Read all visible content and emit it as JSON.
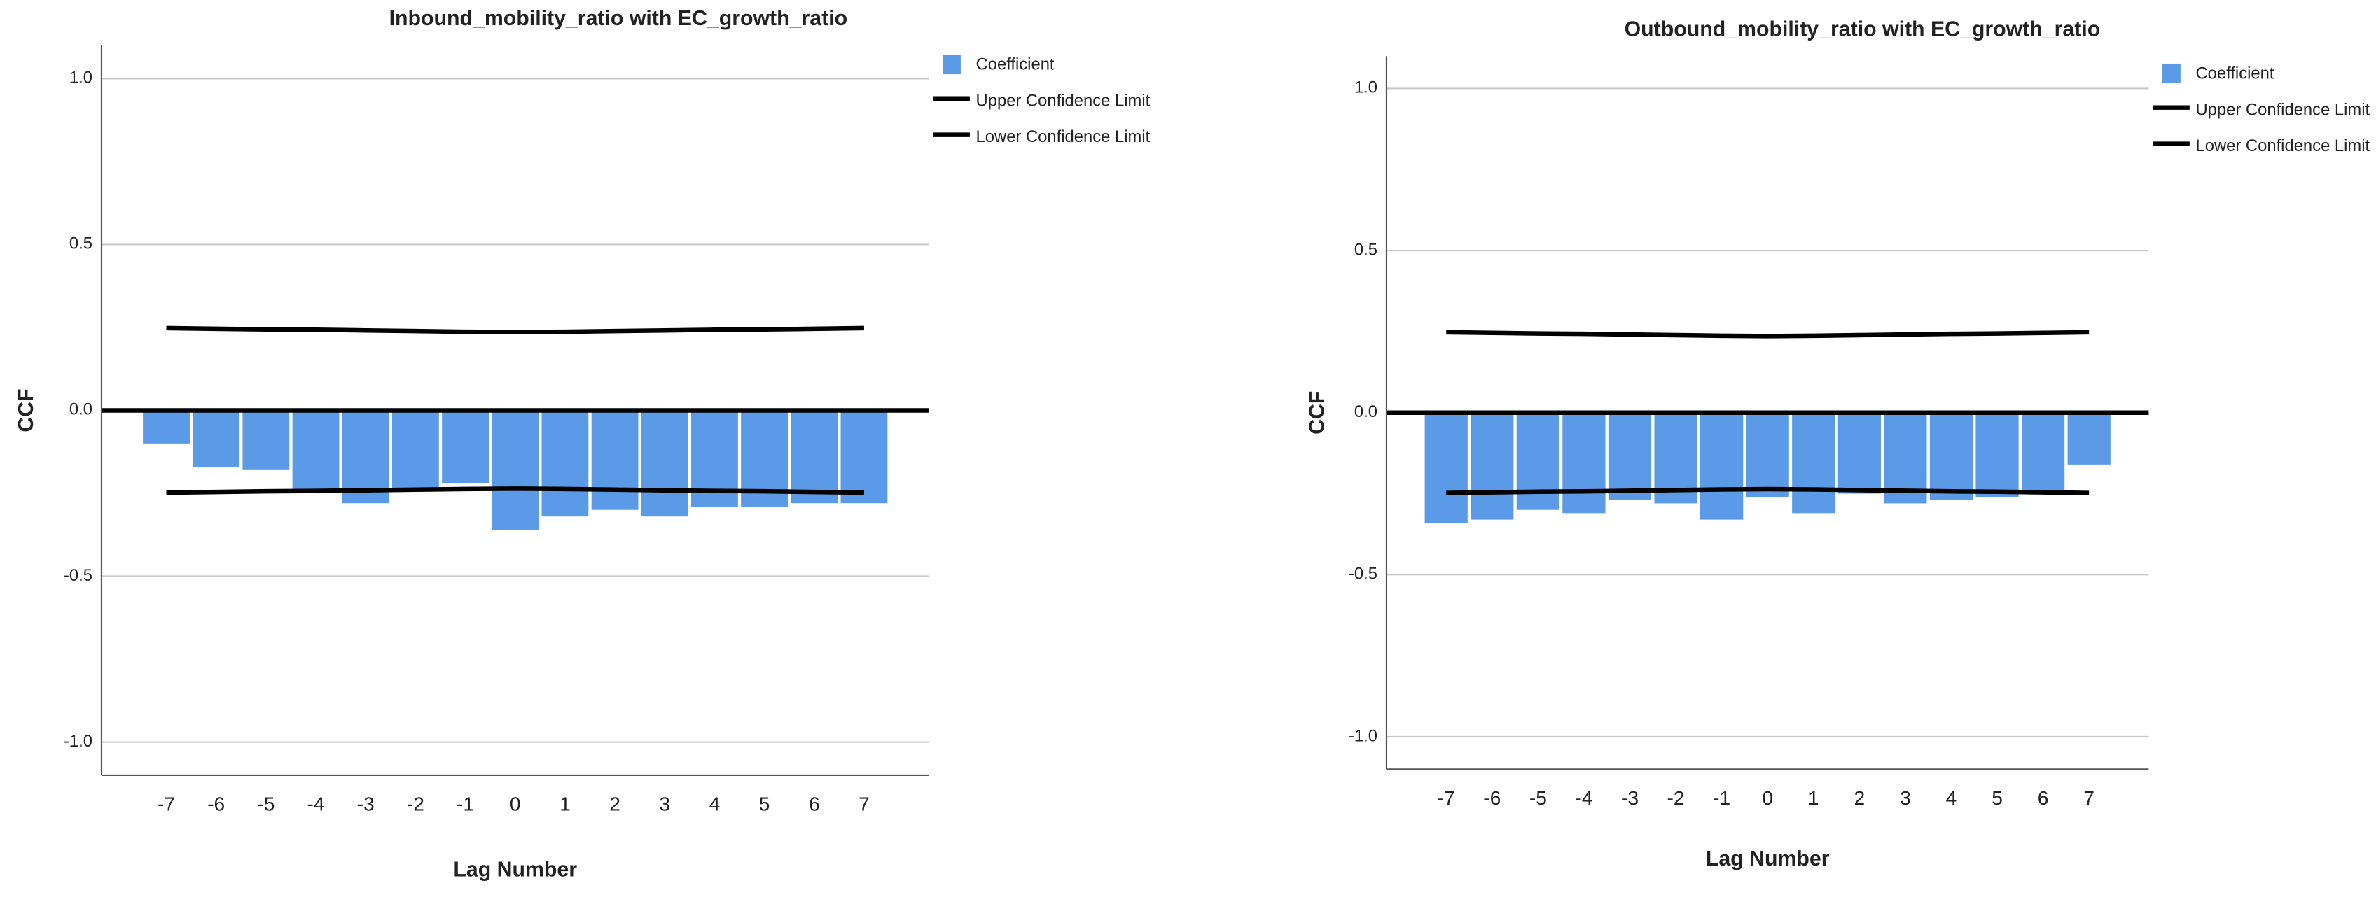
{
  "chart_data": [
    {
      "type": "bar",
      "title": "Inbound_mobility_ratio with EC_growth_ratio",
      "x_label": "Lag Number",
      "y_label": "CCF",
      "categories": [
        "-7",
        "-6",
        "-5",
        "-4",
        "-3",
        "-2",
        "-1",
        "0",
        "1",
        "2",
        "3",
        "4",
        "5",
        "6",
        "7"
      ],
      "series": [
        {
          "name": "Coefficient",
          "color": "#5a9ae6",
          "type": "bar",
          "values": [
            -0.1,
            -0.17,
            -0.18,
            -0.25,
            -0.28,
            -0.24,
            -0.22,
            -0.36,
            -0.32,
            -0.3,
            -0.32,
            -0.29,
            -0.29,
            -0.28,
            -0.28
          ]
        },
        {
          "name": "Upper Confidence Limit",
          "color": "#000000",
          "type": "line",
          "values": [
            0.248,
            0.246,
            0.244,
            0.243,
            0.241,
            0.239,
            0.237,
            0.236,
            0.237,
            0.239,
            0.241,
            0.243,
            0.244,
            0.246,
            0.248
          ]
        },
        {
          "name": "Lower Confidence Limit",
          "color": "#000000",
          "type": "line",
          "values": [
            -0.248,
            -0.246,
            -0.244,
            -0.243,
            -0.241,
            -0.239,
            -0.237,
            -0.236,
            -0.237,
            -0.239,
            -0.241,
            -0.243,
            -0.244,
            -0.246,
            -0.248
          ]
        }
      ],
      "ylim": [
        -1.1,
        1.1
      ],
      "yticks": [
        {
          "value": -1,
          "label": "-1.0"
        },
        {
          "value": -0.5,
          "label": "-0.5"
        },
        {
          "value": 0,
          "label": "0.0"
        },
        {
          "value": 0.5,
          "label": "0.5"
        },
        {
          "value": 1,
          "label": "1.0"
        }
      ],
      "grid": true,
      "legend": "right"
    },
    {
      "type": "bar",
      "title": "Outbound_mobility_ratio with EC_growth_ratio",
      "x_label": "Lag Number",
      "y_label": "CCF",
      "categories": [
        "-7",
        "-6",
        "-5",
        "-4",
        "-3",
        "-2",
        "-1",
        "0",
        "1",
        "2",
        "3",
        "4",
        "5",
        "6",
        "7"
      ],
      "series": [
        {
          "name": "Coefficient",
          "color": "#5a9ae6",
          "type": "bar",
          "values": [
            -0.34,
            -0.33,
            -0.3,
            -0.31,
            -0.27,
            -0.28,
            -0.33,
            -0.26,
            -0.31,
            -0.25,
            -0.28,
            -0.27,
            -0.26,
            -0.25,
            -0.16
          ]
        },
        {
          "name": "Upper Confidence Limit",
          "color": "#000000",
          "type": "line",
          "values": [
            0.248,
            0.246,
            0.244,
            0.243,
            0.241,
            0.239,
            0.237,
            0.236,
            0.237,
            0.239,
            0.241,
            0.243,
            0.244,
            0.246,
            0.248
          ]
        },
        {
          "name": "Lower Confidence Limit",
          "color": "#000000",
          "type": "line",
          "values": [
            -0.248,
            -0.246,
            -0.244,
            -0.243,
            -0.241,
            -0.239,
            -0.237,
            -0.236,
            -0.237,
            -0.239,
            -0.241,
            -0.243,
            -0.244,
            -0.246,
            -0.248
          ]
        }
      ],
      "ylim": [
        -1.1,
        1.1
      ],
      "yticks": [
        {
          "value": -1,
          "label": "-1.0"
        },
        {
          "value": -0.5,
          "label": "-0.5"
        },
        {
          "value": 0,
          "label": "0.0"
        },
        {
          "value": 0.5,
          "label": "0.5"
        },
        {
          "value": 1,
          "label": "1.0"
        }
      ],
      "grid": true,
      "legend": "right"
    }
  ]
}
